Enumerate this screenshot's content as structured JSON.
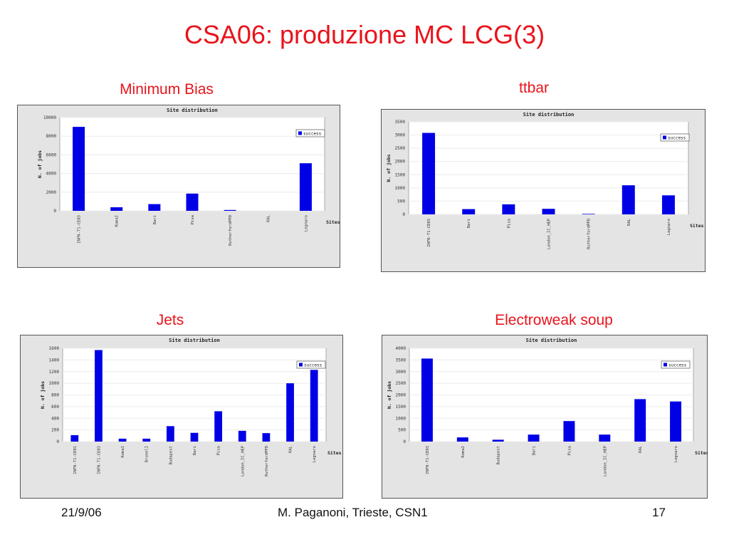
{
  "slide": {
    "title": "CSA06: produzione MC LCG(3)",
    "footer": {
      "date": "21/9/06",
      "author": "M. Paganoni, Trieste, CSN1",
      "page": "17"
    }
  },
  "colors": {
    "title": "#e8141c",
    "bar": "#0000e6",
    "panel": "#e4e4e4"
  },
  "charts": [
    {
      "caption": "Minimum Bias",
      "inner_title": "Site distribution",
      "xlabel": "Sites",
      "ylabel": "N. of jobs",
      "legend": "success",
      "yticks": [
        "0",
        "2000",
        "4000",
        "6000",
        "8000",
        "10000"
      ]
    },
    {
      "caption": "ttbar",
      "inner_title": "Site distribution",
      "xlabel": "Sites",
      "ylabel": "N. of jobs",
      "legend": "success",
      "yticks": [
        "0",
        "500",
        "1000",
        "1500",
        "2000",
        "2500",
        "3000",
        "3500"
      ]
    },
    {
      "caption": "Jets",
      "inner_title": "Site distribution",
      "xlabel": "Sites",
      "ylabel": "N. of jobs",
      "legend": "success",
      "yticks": [
        "0",
        "200",
        "400",
        "600",
        "800",
        "1000",
        "1200",
        "1400",
        "1600"
      ]
    },
    {
      "caption": "Electroweak soup",
      "inner_title": "Site distribution",
      "xlabel": "Sites",
      "ylabel": "N. of jobs",
      "legend": "success",
      "yticks": [
        "0",
        "500",
        "1000",
        "1500",
        "2000",
        "2500",
        "3000",
        "3500",
        "4000"
      ]
    }
  ],
  "chart_data": [
    {
      "type": "bar",
      "title": "Site distribution",
      "xlabel": "Sites",
      "ylabel": "N. of jobs",
      "categories": [
        "INFN-T1-CE03",
        "RomaI",
        "Bari",
        "Pisa",
        "RutherfordPPD",
        "RAL",
        "Legnaro"
      ],
      "series": [
        {
          "name": "success",
          "values": [
            9000,
            380,
            720,
            1850,
            90,
            0,
            5100
          ]
        }
      ],
      "ylim": [
        0,
        10000
      ],
      "legend": "top-right",
      "grid": true
    },
    {
      "type": "bar",
      "title": "Site distribution",
      "xlabel": "Sites",
      "ylabel": "N. of jobs",
      "categories": [
        "INFN-T1-CE03",
        "Bari",
        "Pisa",
        "London_IC_HEP",
        "RutherfordPPD",
        "RAL",
        "Legnaro"
      ],
      "series": [
        {
          "name": "success",
          "values": [
            3080,
            200,
            380,
            210,
            20,
            1100,
            720
          ]
        }
      ],
      "ylim": [
        0,
        3500
      ],
      "legend": "top-right",
      "grid": true
    },
    {
      "type": "bar",
      "title": "Site distribution",
      "xlabel": "Sites",
      "ylabel": "N. of jobs",
      "categories": [
        "INFN-T1-CE01",
        "INFN-T1-CE03",
        "RomaI",
        "BrunelI",
        "Budapest",
        "Bari",
        "Pisa",
        "London_IC_HEP",
        "RutherfordPPD",
        "RAL",
        "Legnaro"
      ],
      "series": [
        {
          "name": "success",
          "values": [
            110,
            1570,
            50,
            50,
            265,
            150,
            520,
            185,
            145,
            1000,
            1230
          ]
        }
      ],
      "ylim": [
        0,
        1600
      ],
      "legend": "top-right",
      "grid": true
    },
    {
      "type": "bar",
      "title": "Site distribution",
      "xlabel": "Sites",
      "ylabel": "N. of jobs",
      "categories": [
        "INFN-T1-CE03",
        "RomaI",
        "Budapest",
        "Bari",
        "Pisa",
        "London_IC_HEP",
        "RAL",
        "Legnaro"
      ],
      "series": [
        {
          "name": "success",
          "values": [
            3560,
            180,
            80,
            300,
            880,
            300,
            1820,
            1720
          ]
        }
      ],
      "ylim": [
        0,
        4000
      ],
      "legend": "top-right",
      "grid": true
    }
  ]
}
